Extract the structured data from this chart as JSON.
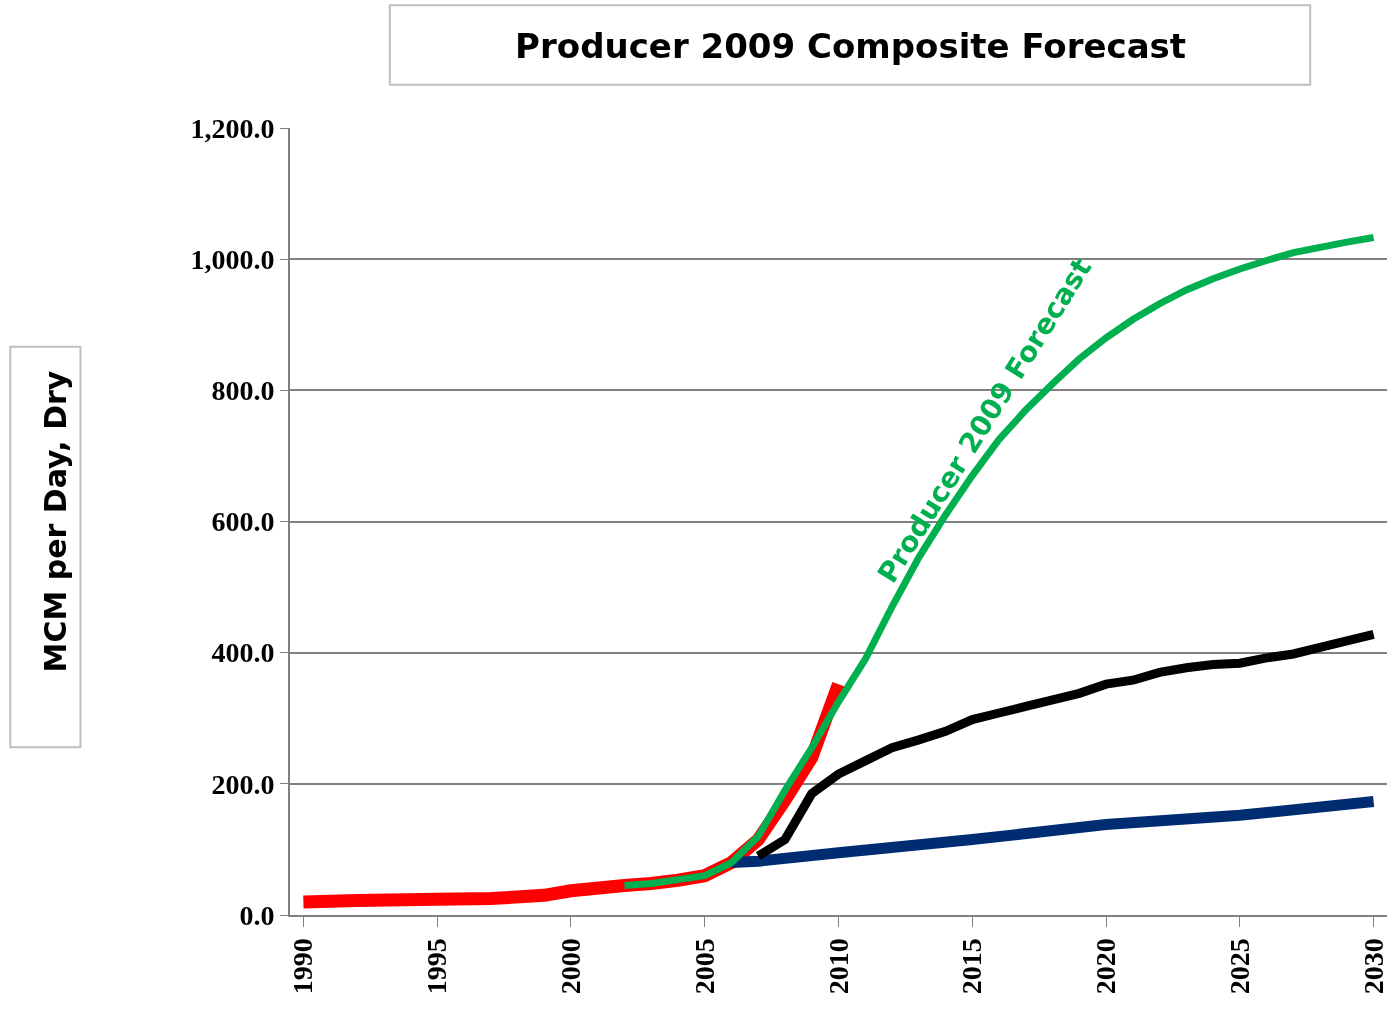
{
  "chart_data": {
    "type": "line",
    "title": "Producer 2009 Composite Forecast",
    "ylabel": "MCM per Day, Dry",
    "grid": "y",
    "legend": false,
    "marker": "none",
    "line_style": "solid",
    "xlim": [
      1989.5,
      2030.5
    ],
    "xticks": [
      1990,
      1995,
      2000,
      2005,
      2010,
      2015,
      2020,
      2025,
      2030
    ],
    "ylim": [
      0,
      1200
    ],
    "yticks": [
      {
        "value": 0,
        "label": "0.0"
      },
      {
        "value": 200,
        "label": "200.0"
      },
      {
        "value": 400,
        "label": "400.0"
      },
      {
        "value": 600,
        "label": "600.0"
      },
      {
        "value": 800,
        "label": "800.0"
      },
      {
        "value": 1000,
        "label": "1,000.0"
      },
      {
        "value": 1200,
        "label": "1,200.0"
      }
    ],
    "series": [
      {
        "color": "#ff0000",
        "x": [
          1990,
          1992,
          1995,
          1997,
          1999,
          2000,
          2002,
          2003,
          2004,
          2005,
          2006,
          2007,
          2008,
          2009,
          2010
        ],
        "values": [
          20,
          22,
          24,
          25,
          30,
          37,
          45,
          48,
          53,
          60,
          80,
          115,
          175,
          240,
          352
        ]
      },
      {
        "color": "#002d72",
        "x": [
          2006,
          2007,
          2010,
          2015,
          2020,
          2025,
          2030
        ],
        "values": [
          80,
          82,
          95,
          115,
          138,
          152,
          173
        ]
      },
      {
        "color": "#000000",
        "x": [
          2007,
          2008,
          2009,
          2010,
          2011,
          2012,
          2013,
          2014,
          2015,
          2016,
          2017,
          2018,
          2019,
          2020,
          2021,
          2022,
          2023,
          2024,
          2025,
          2026,
          2027,
          2028,
          2029,
          2030
        ],
        "values": [
          90,
          115,
          185,
          215,
          235,
          255,
          267,
          280,
          298,
          308,
          318,
          328,
          338,
          352,
          358,
          370,
          377,
          382,
          384,
          392,
          398,
          408,
          418,
          428
        ]
      },
      {
        "name": "Producer 2009 Forecast",
        "color": "#00b050",
        "x": [
          2002,
          2003,
          2004,
          2005,
          2006,
          2007,
          2008,
          2009,
          2010,
          2011,
          2012,
          2013,
          2014,
          2015,
          2016,
          2017,
          2018,
          2019,
          2020,
          2021,
          2022,
          2023,
          2024,
          2025,
          2026,
          2027,
          2028,
          2029,
          2030
        ],
        "values": [
          45,
          48,
          54,
          60,
          80,
          120,
          190,
          255,
          325,
          390,
          470,
          545,
          610,
          670,
          725,
          770,
          810,
          848,
          880,
          908,
          932,
          953,
          970,
          985,
          998,
          1010,
          1018,
          1026,
          1033
        ]
      }
    ]
  }
}
